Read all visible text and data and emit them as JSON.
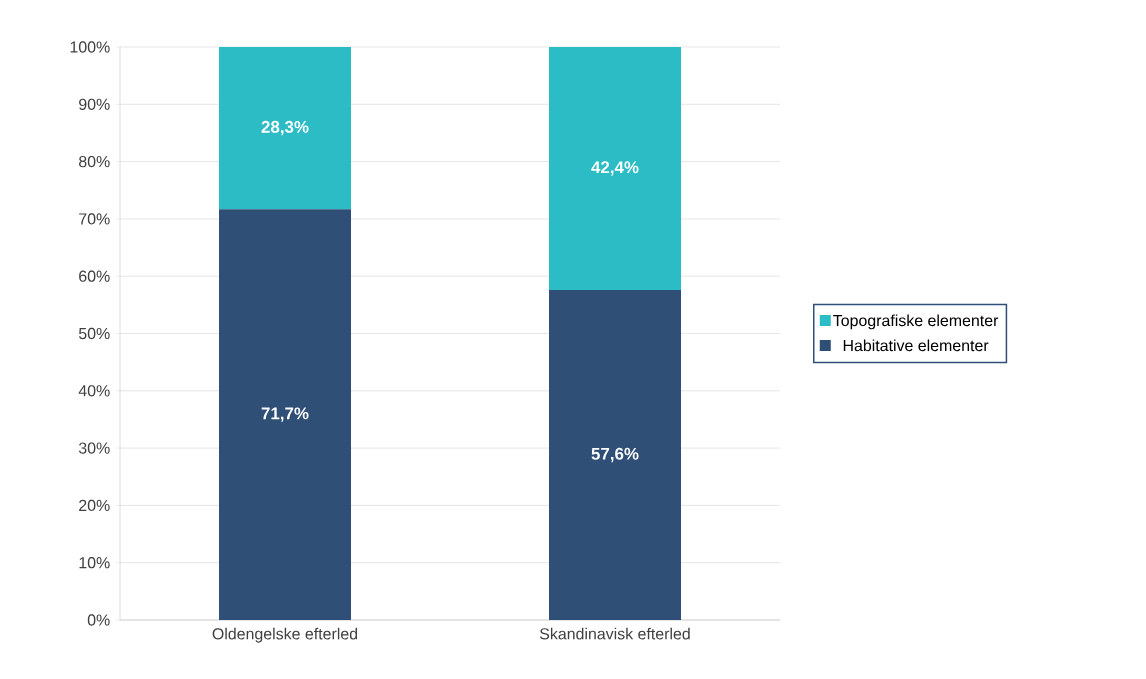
{
  "chart_data": {
    "type": "bar",
    "stacked": true,
    "categories": [
      "Oldengelske efterled",
      "Skandinavisk efterled"
    ],
    "series": [
      {
        "name": "Habitative elementer",
        "color": "#2f4f77",
        "values": [
          71.7,
          57.6
        ],
        "value_labels": [
          "71,7%",
          "57,6%"
        ]
      },
      {
        "name": "Topografiske elementer",
        "color": "#2bbcc6",
        "values": [
          28.3,
          42.4
        ],
        "value_labels": [
          "28,3%",
          "42,4%"
        ]
      }
    ],
    "ylim": [
      0,
      100
    ],
    "yticks": [
      {
        "value": 0,
        "label": "0%"
      },
      {
        "value": 10,
        "label": "10%"
      },
      {
        "value": 20,
        "label": "20%"
      },
      {
        "value": 30,
        "label": "30%"
      },
      {
        "value": 40,
        "label": "40%"
      },
      {
        "value": 50,
        "label": "50%"
      },
      {
        "value": 60,
        "label": "60%"
      },
      {
        "value": 70,
        "label": "70%"
      },
      {
        "value": 80,
        "label": "80%"
      },
      {
        "value": 90,
        "label": "90%"
      },
      {
        "value": 100,
        "label": "100%"
      }
    ],
    "grid": "y",
    "legend": "right"
  }
}
